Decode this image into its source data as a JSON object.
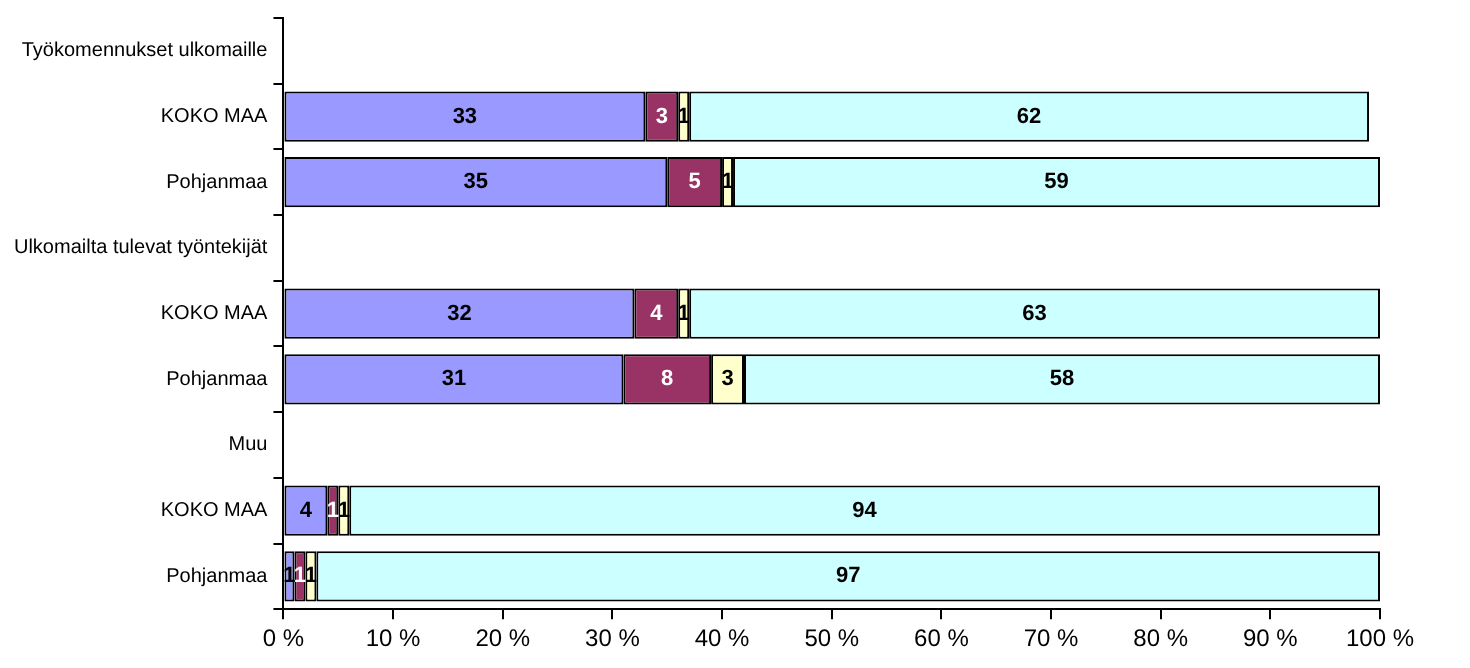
{
  "chart_data": {
    "type": "bar",
    "orientation": "horizontal",
    "stacked": true,
    "categories": [
      "Työkomennukset ulkomaille",
      "KOKO MAA",
      "Pohjanmaa",
      "Ulkomailta tulevat työntekijät",
      "KOKO MAA",
      "Pohjanmaa",
      "Muu",
      "KOKO MAA",
      "Pohjanmaa"
    ],
    "series": [
      {
        "color": "#9999ff",
        "values": [
          null,
          33,
          35,
          null,
          32,
          31,
          null,
          4,
          1
        ]
      },
      {
        "color": "#993366",
        "values": [
          null,
          3,
          5,
          null,
          4,
          8,
          null,
          1,
          1
        ]
      },
      {
        "color": "#ffffcc",
        "values": [
          null,
          1,
          1,
          null,
          1,
          3,
          null,
          1,
          1
        ]
      },
      {
        "color": "#ccffff",
        "values": [
          null,
          62,
          59,
          null,
          63,
          58,
          null,
          94,
          97
        ]
      }
    ],
    "xlim": [
      0,
      100
    ],
    "xticks": [
      {
        "value": 0,
        "label": "0 %"
      },
      {
        "value": 10,
        "label": "10 %"
      },
      {
        "value": 20,
        "label": "20 %"
      },
      {
        "value": 30,
        "label": "30 %"
      },
      {
        "value": 40,
        "label": "40 %"
      },
      {
        "value": 50,
        "label": "50 %"
      },
      {
        "value": 60,
        "label": "60 %"
      },
      {
        "value": 70,
        "label": "70 %"
      },
      {
        "value": 80,
        "label": "80 %"
      },
      {
        "value": 90,
        "label": "90 %"
      },
      {
        "value": 100,
        "label": "100 %"
      }
    ],
    "grid": false,
    "legend": false,
    "data_labels": true
  }
}
